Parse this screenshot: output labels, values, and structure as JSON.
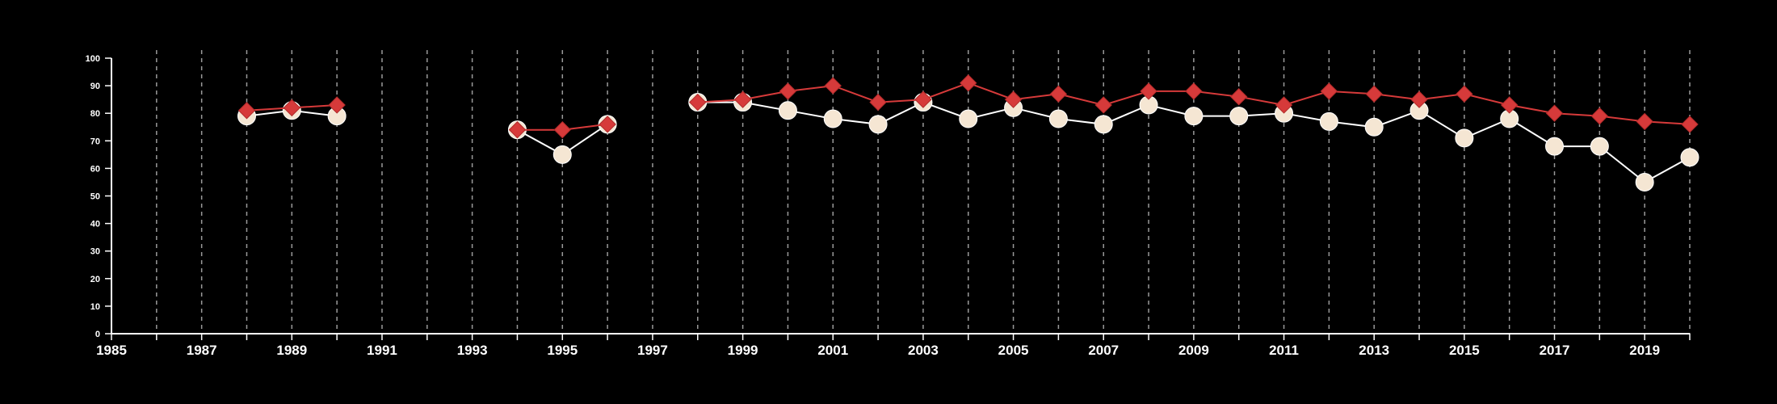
{
  "chart_data": {
    "type": "line",
    "title": "",
    "xlabel": "",
    "ylabel": "",
    "xlim": [
      1985,
      2020
    ],
    "ylim": [
      0,
      100
    ],
    "x_ticks": [
      1985,
      1987,
      1989,
      1991,
      1993,
      1995,
      1997,
      1999,
      2001,
      2003,
      2005,
      2007,
      2009,
      2011,
      2013,
      2015,
      2017,
      2019
    ],
    "x_tick_labels": [
      "1985",
      "1987",
      "1989",
      "1991",
      "1993",
      "1995",
      "1997",
      "1999",
      "2001",
      "2003",
      "2005",
      "2007",
      "2009",
      "2011",
      "2013",
      "2015",
      "2017",
      "2019"
    ],
    "y_ticks": [
      0,
      10,
      20,
      30,
      40,
      50,
      60,
      70,
      80,
      90,
      100
    ],
    "y_tick_labels": [
      "0",
      "10",
      "20",
      "30",
      "40",
      "50",
      "60",
      "70",
      "80",
      "90",
      "100"
    ],
    "vertical_grid": "dashed, at every year",
    "legend": "none",
    "series": [
      {
        "marker": "circle",
        "color": "#ffffff",
        "marker_fill": "#f5e6d3",
        "points": [
          {
            "x": 1988,
            "y": 79
          },
          {
            "x": 1989,
            "y": 81
          },
          {
            "x": 1990,
            "y": 79
          },
          {
            "x": 1994,
            "y": 74
          },
          {
            "x": 1995,
            "y": 65
          },
          {
            "x": 1996,
            "y": 76
          },
          {
            "x": 1998,
            "y": 84
          },
          {
            "x": 1999,
            "y": 84
          },
          {
            "x": 2000,
            "y": 81
          },
          {
            "x": 2001,
            "y": 78
          },
          {
            "x": 2002,
            "y": 76
          },
          {
            "x": 2003,
            "y": 84
          },
          {
            "x": 2004,
            "y": 78
          },
          {
            "x": 2005,
            "y": 82
          },
          {
            "x": 2006,
            "y": 78
          },
          {
            "x": 2007,
            "y": 76
          },
          {
            "x": 2008,
            "y": 83
          },
          {
            "x": 2009,
            "y": 79
          },
          {
            "x": 2010,
            "y": 79
          },
          {
            "x": 2011,
            "y": 80
          },
          {
            "x": 2012,
            "y": 77
          },
          {
            "x": 2013,
            "y": 75
          },
          {
            "x": 2014,
            "y": 81
          },
          {
            "x": 2015,
            "y": 71
          },
          {
            "x": 2016,
            "y": 78
          },
          {
            "x": 2017,
            "y": 68
          },
          {
            "x": 2018,
            "y": 68
          },
          {
            "x": 2019,
            "y": 55
          },
          {
            "x": 2020,
            "y": 64
          }
        ]
      },
      {
        "marker": "diamond",
        "color": "#d63a3a",
        "marker_fill": "#d63a3a",
        "points": [
          {
            "x": 1988,
            "y": 81
          },
          {
            "x": 1989,
            "y": 82
          },
          {
            "x": 1990,
            "y": 83
          },
          {
            "x": 1994,
            "y": 74
          },
          {
            "x": 1995,
            "y": 74
          },
          {
            "x": 1996,
            "y": 76
          },
          {
            "x": 1998,
            "y": 84
          },
          {
            "x": 1999,
            "y": 85
          },
          {
            "x": 2000,
            "y": 88
          },
          {
            "x": 2001,
            "y": 90
          },
          {
            "x": 2002,
            "y": 84
          },
          {
            "x": 2003,
            "y": 85
          },
          {
            "x": 2004,
            "y": 91
          },
          {
            "x": 2005,
            "y": 85
          },
          {
            "x": 2006,
            "y": 87
          },
          {
            "x": 2007,
            "y": 83
          },
          {
            "x": 2008,
            "y": 88
          },
          {
            "x": 2009,
            "y": 88
          },
          {
            "x": 2010,
            "y": 86
          },
          {
            "x": 2011,
            "y": 83
          },
          {
            "x": 2012,
            "y": 88
          },
          {
            "x": 2013,
            "y": 87
          },
          {
            "x": 2014,
            "y": 85
          },
          {
            "x": 2015,
            "y": 87
          },
          {
            "x": 2016,
            "y": 83
          },
          {
            "x": 2017,
            "y": 80
          },
          {
            "x": 2018,
            "y": 79
          },
          {
            "x": 2019,
            "y": 77
          },
          {
            "x": 2020,
            "y": 76
          }
        ]
      }
    ]
  }
}
